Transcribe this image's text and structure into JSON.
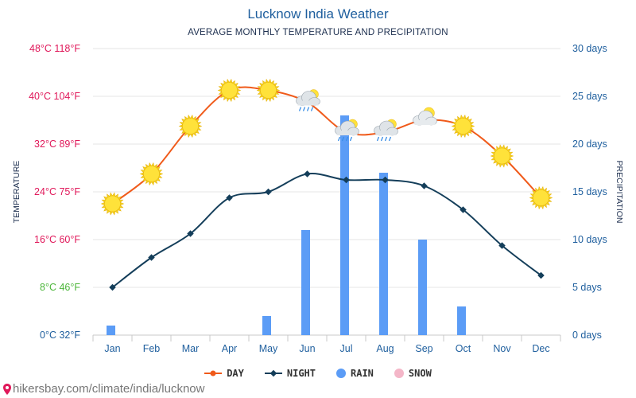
{
  "title": "Lucknow India Weather",
  "subtitle": "AVERAGE MONTHLY TEMPERATURE AND PRECIPITATION",
  "footer": "hikersbay.com/climate/india/lucknow",
  "colors": {
    "day": "#f05a1a",
    "night": "#143e5a",
    "rain": "#5b9cf6",
    "snow": "#f4b6c8",
    "title": "#1f5f9e",
    "right_axis": "#1f5f9e",
    "grid": "#e4e4e4"
  },
  "chart_data": {
    "type": "line",
    "title": "Lucknow India Weather",
    "subtitle": "AVERAGE MONTHLY TEMPERATURE AND PRECIPITATION",
    "categories": [
      "Jan",
      "Feb",
      "Mar",
      "Apr",
      "May",
      "Jun",
      "Jul",
      "Aug",
      "Sep",
      "Oct",
      "Nov",
      "Dec"
    ],
    "series": [
      {
        "name": "DAY",
        "values": [
          22,
          27,
          35,
          41,
          41,
          39,
          34,
          34,
          36,
          35,
          30,
          23
        ]
      },
      {
        "name": "NIGHT",
        "values": [
          8,
          13,
          17,
          23,
          24,
          27,
          26,
          26,
          25,
          21,
          15,
          10
        ]
      },
      {
        "name": "RAIN",
        "values": [
          1,
          0,
          0,
          0,
          2,
          11,
          23,
          17,
          10,
          3,
          0,
          0
        ]
      },
      {
        "name": "SNOW",
        "values": [
          0,
          0,
          0,
          0,
          0,
          0,
          0,
          0,
          0,
          0,
          0,
          0
        ]
      }
    ],
    "weather_icons": [
      "sun",
      "sun",
      "sun",
      "sun",
      "sun",
      "rain-cloud",
      "rain-cloud",
      "rain-cloud",
      "partly-cloudy",
      "sun",
      "sun",
      "sun"
    ],
    "ylabel": "TEMPERATURE",
    "y2label": "PRECIPITATION",
    "ylim": [
      0,
      48
    ],
    "y2lim": [
      0,
      30
    ],
    "left_ticks": [
      {
        "label": "0°C 32°F",
        "value": 0,
        "color": "#1f5f9e"
      },
      {
        "label": "8°C 46°F",
        "value": 8,
        "color": "#4cb63a"
      },
      {
        "label": "16°C 60°F",
        "value": 16,
        "color": "#e0185a"
      },
      {
        "label": "24°C 75°F",
        "value": 24,
        "color": "#e0185a"
      },
      {
        "label": "32°C 89°F",
        "value": 32,
        "color": "#e0185a"
      },
      {
        "label": "40°C 104°F",
        "value": 40,
        "color": "#e0185a"
      },
      {
        "label": "48°C 118°F",
        "value": 48,
        "color": "#e0185a"
      }
    ],
    "right_ticks": [
      {
        "label": "0 days",
        "value": 0
      },
      {
        "label": "5 days",
        "value": 5
      },
      {
        "label": "10 days",
        "value": 10
      },
      {
        "label": "15 days",
        "value": 15
      },
      {
        "label": "20 days",
        "value": 20
      },
      {
        "label": "25 days",
        "value": 25
      },
      {
        "label": "30 days",
        "value": 30
      }
    ],
    "grid": true,
    "legend_position": "bottom"
  }
}
